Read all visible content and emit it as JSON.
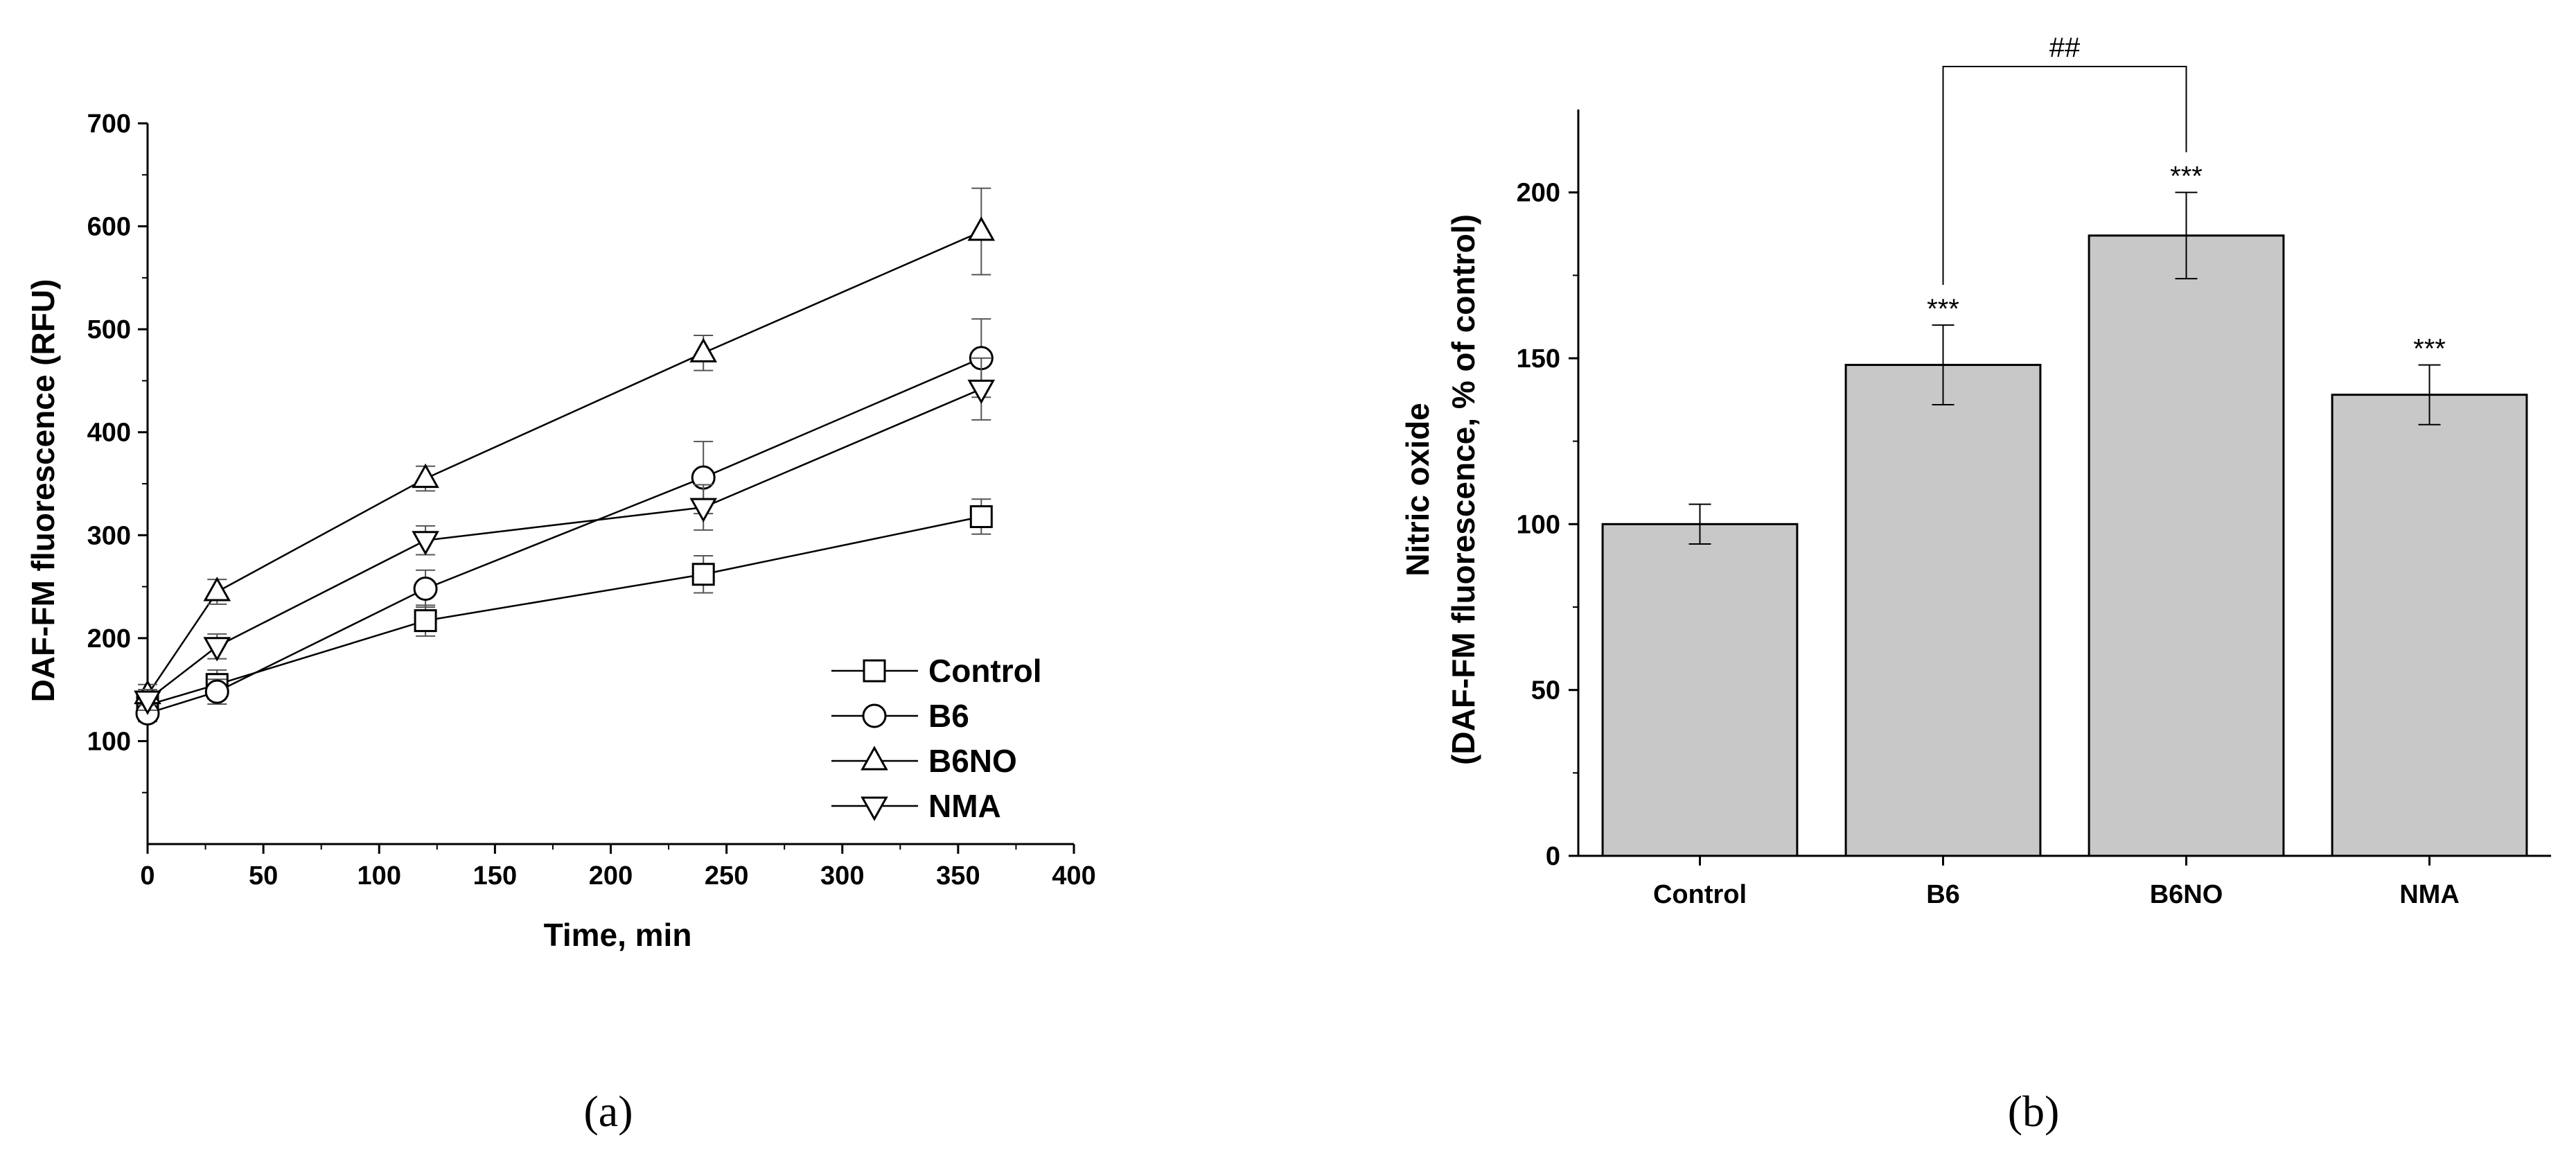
{
  "panels": {
    "a": "(a)",
    "b": "(b)"
  },
  "chart_data": [
    {
      "type": "line",
      "xlabel": "Time, min",
      "ylabel": "DAF-FM fluorescence (RFU)",
      "xlim": [
        0,
        400
      ],
      "ylim": [
        0,
        700
      ],
      "x_ticks": [
        0,
        50,
        100,
        150,
        200,
        250,
        300,
        350,
        400
      ],
      "y_ticks": [
        100,
        200,
        300,
        400,
        500,
        600,
        700
      ],
      "legend_position": "bottom-right",
      "series": [
        {
          "name": "Control",
          "marker": "square",
          "x": [
            0,
            30,
            120,
            240,
            360
          ],
          "y": [
            135,
            155,
            217,
            262,
            318
          ],
          "err": [
            10,
            14,
            15,
            18,
            17
          ]
        },
        {
          "name": "B6",
          "marker": "circle",
          "x": [
            0,
            30,
            120,
            240,
            360
          ],
          "y": [
            127,
            148,
            248,
            356,
            472
          ],
          "err": [
            8,
            12,
            18,
            35,
            38
          ]
        },
        {
          "name": "B6NO",
          "marker": "triangle-up",
          "x": [
            0,
            30,
            120,
            240,
            360
          ],
          "y": [
            145,
            245,
            355,
            477,
            595
          ],
          "err": [
            10,
            12,
            12,
            17,
            42
          ]
        },
        {
          "name": "NMA",
          "marker": "triangle-down",
          "x": [
            0,
            30,
            120,
            240,
            360
          ],
          "y": [
            140,
            192,
            295,
            327,
            442
          ],
          "err": [
            10,
            12,
            14,
            22,
            30
          ]
        }
      ]
    },
    {
      "type": "bar",
      "ylabel_line1": "Nitric oxide",
      "ylabel_line2": "(DAF-FM fluorescence, % of control)",
      "categories": [
        "Control",
        "B6",
        "B6NO",
        "NMA"
      ],
      "values": [
        100,
        148,
        187,
        139
      ],
      "errors": [
        6,
        12,
        13,
        9
      ],
      "ylim": [
        0,
        225
      ],
      "y_ticks": [
        0,
        50,
        100,
        150,
        200
      ],
      "significance": [
        "",
        "***",
        "***",
        "***"
      ],
      "bracket": {
        "from": "B6",
        "to": "B6NO",
        "label": "##"
      },
      "bar_color": "#c8c8c8"
    }
  ]
}
